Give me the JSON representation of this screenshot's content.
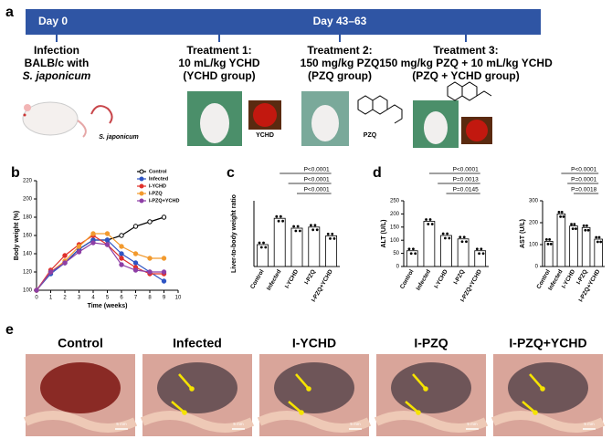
{
  "timeline": {
    "panel": "a",
    "start": "Day 0",
    "end": "Day 43–63",
    "infection": [
      "Infection",
      "BALB/c with",
      "S. japonicum"
    ],
    "treatments": [
      [
        "Treatment 1:",
        "10 mL/kg YCHD",
        "(YCHD group)"
      ],
      [
        "Treatment 2:",
        "150 mg/kg PZQ",
        "(PZQ group)"
      ],
      [
        "Treatment 3:",
        "150 mg/kg PZQ + 10 mL/kg YCHD",
        "(PZQ + YCHD group)"
      ]
    ],
    "image_labels": [
      "S. japonicum",
      "YCHD",
      "PZQ"
    ]
  },
  "panel_labels": [
    "b",
    "c",
    "d"
  ],
  "chart_data": [
    {
      "type": "line",
      "xlabel": "Time (weeks)",
      "ylabel": "Body weight (%)",
      "x": [
        0,
        1,
        2,
        3,
        4,
        5,
        6,
        7,
        8,
        9
      ],
      "xlim": [
        0,
        10
      ],
      "xticks": [
        0,
        1,
        2,
        3,
        4,
        5,
        6,
        7,
        8,
        9,
        10
      ],
      "ylim": [
        100,
        220
      ],
      "yticks": [
        100,
        120,
        140,
        160,
        180,
        200,
        220
      ],
      "legend": "top-right",
      "series": [
        {
          "name": "Control",
          "color": "#000000",
          "values": [
            100,
            120,
            130,
            145,
            155,
            155,
            160,
            170,
            175,
            180
          ]
        },
        {
          "name": "Infected",
          "color": "#2f55c4",
          "values": [
            100,
            118,
            130,
            145,
            155,
            155,
            140,
            130,
            120,
            110
          ]
        },
        {
          "name": "I-YCHD",
          "color": "#e0302a",
          "values": [
            100,
            122,
            138,
            150,
            160,
            150,
            135,
            125,
            118,
            118
          ]
        },
        {
          "name": "I-PZQ",
          "color": "#f29a2e",
          "values": [
            100,
            120,
            132,
            148,
            162,
            162,
            148,
            140,
            135,
            135
          ]
        },
        {
          "name": "I-PZQ+YCHD",
          "color": "#8e3fa6",
          "values": [
            100,
            120,
            130,
            142,
            152,
            150,
            128,
            122,
            120,
            120
          ]
        }
      ]
    },
    {
      "type": "bar",
      "ylabel": "Liver-to-body weight ratio",
      "color": "#ffffff",
      "categories": [
        "Control",
        "Infected",
        "I-YCHD",
        "I-PZQ",
        "I-PZQ+YCHD"
      ],
      "values": [
        40,
        88,
        70,
        72,
        56
      ],
      "ylim": [
        0,
        120
      ],
      "annotations": [
        "P<0.0001",
        "P<0.0001",
        "P<0.0001"
      ]
    },
    {
      "type": "bar",
      "ylabel": "ALT (U/L)",
      "color": "#ffffff",
      "categories": [
        "Control",
        "Infected",
        "I-YCHD",
        "I-PZQ",
        "I-PZQ+YCHD"
      ],
      "values": [
        60,
        172,
        118,
        105,
        60
      ],
      "ylim": [
        0,
        250
      ],
      "yticks": [
        0,
        50,
        100,
        150,
        200,
        250
      ],
      "annotations": [
        "P<0.0001",
        "P=0.0013",
        "P=0.0145"
      ]
    },
    {
      "type": "bar",
      "ylabel": "AST (U/L)",
      "color": "#ffffff",
      "categories": [
        "Control",
        "Infected",
        "I-YCHD",
        "I-PZQ",
        "I-PZQ+YCHD"
      ],
      "values": [
        115,
        240,
        185,
        178,
        125
      ],
      "ylim": [
        0,
        300
      ],
      "yticks": [
        0,
        100,
        200,
        300
      ],
      "annotations": [
        "P<0.0001",
        "P=0.0001",
        "P=0.0018"
      ]
    }
  ],
  "photos": {
    "panel": "e",
    "titles": [
      "Control",
      "Infected",
      "I-YCHD",
      "I-PZQ",
      "I-PZQ+YCHD"
    ],
    "scale_bar": "5 mm"
  }
}
